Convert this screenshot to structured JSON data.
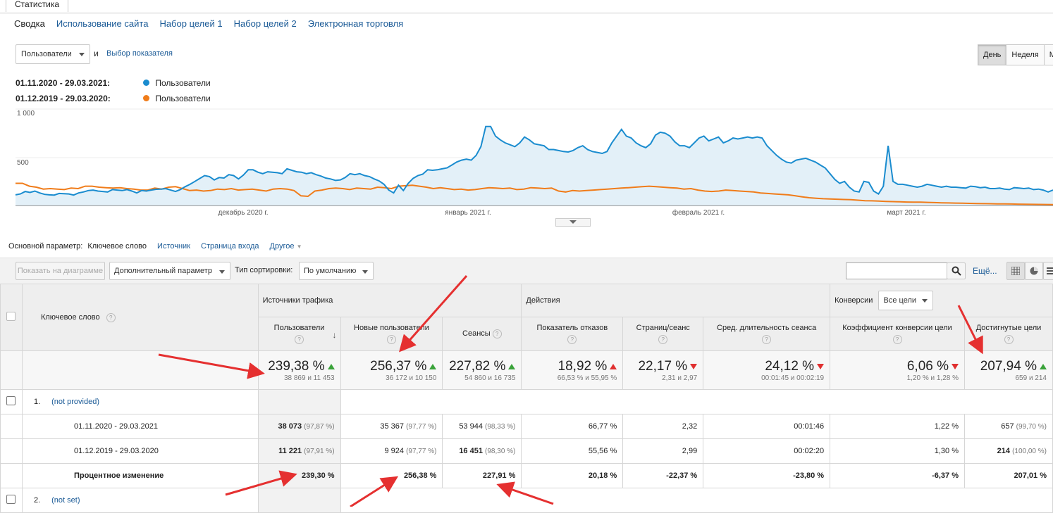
{
  "top_tab": "Статистика",
  "subtabs": [
    "Сводка",
    "Использование сайта",
    "Набор целей 1",
    "Набор целей 2",
    "Электронная торговля"
  ],
  "metric": {
    "selected": "Пользователи",
    "and": "и",
    "choose": "Выбор показателя"
  },
  "period_buttons": [
    "День",
    "Неделя",
    "М"
  ],
  "legend": [
    {
      "range": "01.11.2020 - 29.03.2021:",
      "label": "Пользователи",
      "color": "#1a8ccf"
    },
    {
      "range": "01.12.2019 - 29.03.2020:",
      "label": "Пользователи",
      "color": "#f07c1a"
    }
  ],
  "chart_data": {
    "type": "line",
    "y_ticks": [
      "1 000",
      "500"
    ],
    "ylim": [
      0,
      1000
    ],
    "x_labels": [
      "декабрь 2020 г.",
      "январь 2021 г.",
      "февраль 2021 г.",
      "март 2021 г."
    ],
    "series": [
      {
        "name": "Пользователи",
        "period": "01.11.2020 - 29.03.2021",
        "color": "#1a8ccf",
        "values": [
          110,
          120,
          145,
          135,
          150,
          130,
          115,
          110,
          108,
          125,
          122,
          120,
          108,
          130,
          140,
          155,
          160,
          150,
          145,
          140,
          165,
          160,
          155,
          165,
          150,
          130,
          155,
          150,
          160,
          168,
          170,
          175,
          160,
          145,
          165,
          195,
          220,
          250,
          280,
          310,
          300,
          265,
          290,
          285,
          320,
          310,
          275,
          315,
          370,
          370,
          345,
          330,
          350,
          345,
          340,
          330,
          380,
          365,
          350,
          345,
          330,
          340,
          320,
          305,
          285,
          275,
          260,
          265,
          290,
          330,
          320,
          330,
          310,
          300,
          275,
          255,
          220,
          160,
          130,
          210,
          155,
          230,
          280,
          310,
          325,
          370,
          365,
          370,
          380,
          390,
          420,
          450,
          470,
          480,
          470,
          520,
          610,
          820,
          820,
          720,
          680,
          650,
          630,
          610,
          650,
          710,
          680,
          640,
          630,
          620,
          580,
          580,
          570,
          560,
          555,
          570,
          600,
          620,
          580,
          560,
          550,
          540,
          560,
          650,
          720,
          790,
          720,
          700,
          650,
          620,
          600,
          640,
          730,
          760,
          750,
          720,
          660,
          620,
          620,
          600,
          650,
          700,
          720,
          670,
          690,
          710,
          650,
          670,
          700,
          690,
          700,
          710,
          700,
          710,
          700,
          620,
          570,
          520,
          480,
          450,
          440,
          470,
          480,
          490,
          470,
          450,
          420,
          390,
          330,
          270,
          230,
          250,
          190,
          150,
          140,
          250,
          240,
          150,
          120,
          200,
          620,
          250,
          220,
          220,
          210,
          200,
          190,
          200,
          220,
          210,
          200,
          190,
          200,
          190,
          190,
          185,
          180,
          200,
          195,
          185,
          190,
          175,
          175,
          180,
          170,
          165,
          185,
          180,
          175,
          180,
          165,
          170,
          160,
          140,
          160
        ]
      },
      {
        "name": "Пользователи",
        "period": "01.12.2019 - 29.03.2020",
        "color": "#f07c1a",
        "values": [
          230,
          230,
          200,
          190,
          170,
          175,
          170,
          165,
          180,
          175,
          200,
          200,
          190,
          185,
          180,
          185,
          175,
          170,
          160,
          160,
          180,
          170,
          190,
          195,
          175,
          155,
          160,
          150,
          155,
          170,
          165,
          175,
          160,
          165,
          170,
          160,
          150,
          170,
          175,
          170,
          155,
          100,
          95,
          150,
          160,
          175,
          180,
          175,
          165,
          180,
          175,
          170,
          190,
          185,
          175,
          200,
          205,
          210,
          200,
          190,
          175,
          185,
          175,
          165,
          170,
          160,
          165,
          175,
          185,
          180,
          175,
          180,
          165,
          170,
          185,
          180,
          175,
          180,
          150,
          140,
          155,
          150,
          155,
          160,
          165,
          170,
          175,
          180,
          185,
          190,
          195,
          200,
          195,
          190,
          185,
          180,
          170,
          175,
          160,
          150,
          145,
          150,
          160,
          155,
          150,
          145,
          140,
          130,
          125,
          120,
          115,
          110,
          100,
          90,
          80,
          75,
          70,
          68,
          65,
          62,
          60,
          55,
          50,
          48,
          45,
          42,
          40,
          38,
          36,
          35,
          34,
          32,
          30,
          28,
          26,
          25,
          24,
          22,
          20,
          19,
          18,
          17,
          16,
          15,
          14,
          13,
          12,
          11,
          10,
          9
        ]
      }
    ]
  },
  "dimension": {
    "label": "Основной параметр:",
    "active": "Ключевое слово",
    "links": [
      "Источник",
      "Страница входа",
      "Другое"
    ]
  },
  "toolbar": {
    "plot": "Показать на диаграмме",
    "secondary": "Дополнительный параметр",
    "sort_label": "Тип сортировки:",
    "sort_value": "По умолчанию",
    "more": "Ещё..."
  },
  "table": {
    "col_keyword": "Ключевое слово",
    "group_traffic": "Источники трафика",
    "group_actions": "Действия",
    "group_conv": "Конверсии",
    "conv_select": "Все цели",
    "cols": [
      "Пользователи",
      "Новые пользователи",
      "Сеансы",
      "Показатель отказов",
      "Страниц/сеанс",
      "Сред. длительность сеанса",
      "Коэффициент конверсии цели",
      "Достигнутые цели"
    ],
    "summary": [
      {
        "big": "239,38 %",
        "small": "38 869 и 11 453",
        "trend": "up"
      },
      {
        "big": "256,37 %",
        "small": "36 172 и 10 150",
        "trend": "up"
      },
      {
        "big": "227,82 %",
        "small": "54 860 и 16 735",
        "trend": "up"
      },
      {
        "big": "18,92 %",
        "small": "66,53 % и 55,95 %",
        "trend": "up-red"
      },
      {
        "big": "22,17 %",
        "small": "2,31 и 2,97",
        "trend": "down"
      },
      {
        "big": "24,12 %",
        "small": "00:01:45 и 00:02:19",
        "trend": "down"
      },
      {
        "big": "6,06 %",
        "small": "1,20 % и 1,28 %",
        "trend": "down"
      },
      {
        "big": "207,94 %",
        "small": "659 и 214",
        "trend": "up"
      }
    ],
    "row1": {
      "num": "1.",
      "name": "(not provided)"
    },
    "sub_rows": [
      {
        "label": "01.11.2020 - 29.03.2021",
        "cells": [
          [
            "38 073",
            "(97,87 %)"
          ],
          [
            "35 367",
            "(97,77 %)"
          ],
          [
            "53 944",
            "(98,33 %)"
          ],
          [
            "66,77 %",
            ""
          ],
          [
            "2,32",
            ""
          ],
          [
            "00:01:46",
            ""
          ],
          [
            "1,22 %",
            ""
          ],
          [
            "657",
            "(99,70 %)"
          ]
        ]
      },
      {
        "label": "01.12.2019 - 29.03.2020",
        "cells": [
          [
            "11 221",
            "(97,91 %)"
          ],
          [
            "9 924",
            "(97,77 %)"
          ],
          [
            "16 451",
            "(98,30 %)"
          ],
          [
            "55,56 %",
            ""
          ],
          [
            "2,99",
            ""
          ],
          [
            "00:02:20",
            ""
          ],
          [
            "1,30 %",
            ""
          ],
          [
            "214",
            "(100,00 %)"
          ]
        ]
      },
      {
        "label": "Процентное изменение",
        "cells": [
          [
            "239,30 %",
            ""
          ],
          [
            "256,38 %",
            ""
          ],
          [
            "227,91 %",
            ""
          ],
          [
            "20,18 %",
            ""
          ],
          [
            "-22,37 %",
            ""
          ],
          [
            "-23,80 %",
            ""
          ],
          [
            "-6,37 %",
            ""
          ],
          [
            "207,01 %",
            ""
          ]
        ]
      }
    ],
    "row2": {
      "num": "2.",
      "name": "(not set)"
    }
  }
}
